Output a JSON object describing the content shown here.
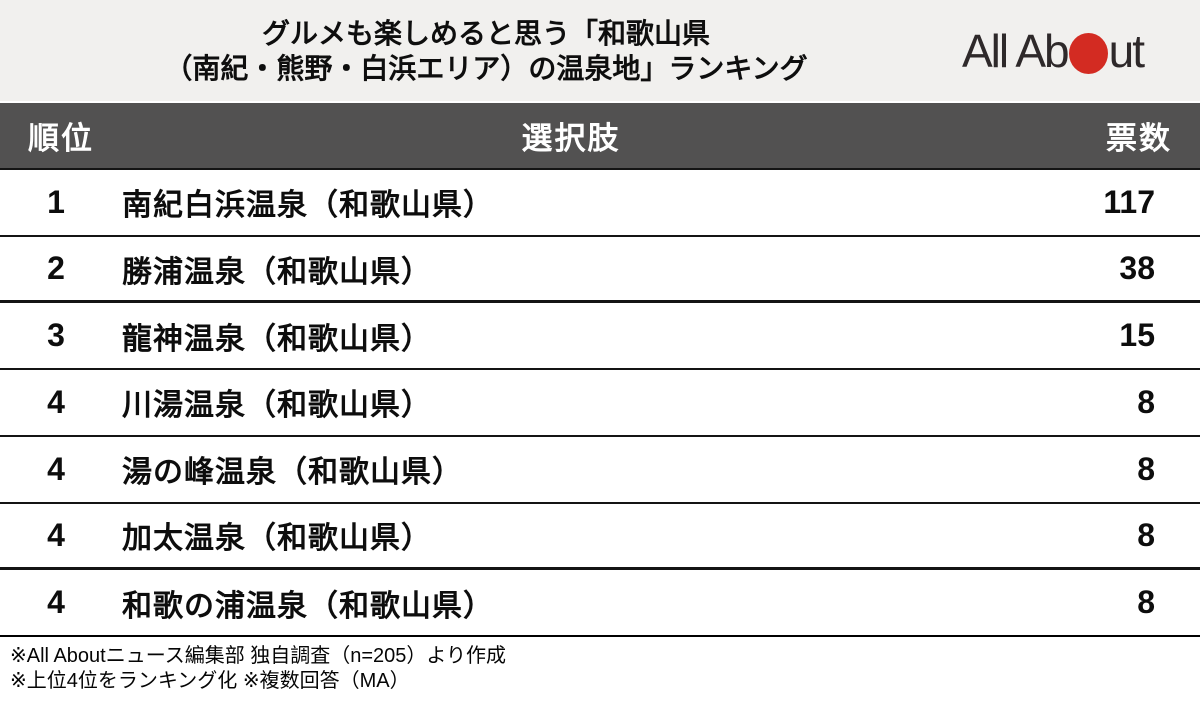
{
  "header": {
    "title_line1": "グルメも楽しめると思う「和歌山県",
    "title_line2": "（南紀・熊野・白浜エリア）の温泉地」ランキング",
    "logo": {
      "name": "All About",
      "text_before": "All Ab",
      "text_after": "ut"
    }
  },
  "table": {
    "columns": [
      "順位",
      "選択肢",
      "票数"
    ],
    "rows": [
      {
        "rank": "1",
        "choice": "南紀白浜温泉（和歌山県）",
        "votes": "117"
      },
      {
        "rank": "2",
        "choice": "勝浦温泉（和歌山県）",
        "votes": "38"
      },
      {
        "rank": "3",
        "choice": "龍神温泉（和歌山県）",
        "votes": "15"
      },
      {
        "rank": "4",
        "choice": "川湯温泉（和歌山県）",
        "votes": "8"
      },
      {
        "rank": "4",
        "choice": "湯の峰温泉（和歌山県）",
        "votes": "8"
      },
      {
        "rank": "4",
        "choice": "加太温泉（和歌山県）",
        "votes": "8"
      },
      {
        "rank": "4",
        "choice": "和歌の浦温泉（和歌山県）",
        "votes": "8"
      }
    ]
  },
  "footer": {
    "line1": "※All Aboutニュース編集部 独自調査（n=205）より作成",
    "line2": "※上位4位をランキング化 ※複数回答（MA）"
  },
  "colors": {
    "title_band_bg": "#f1f0ee",
    "table_header_bg": "#525151",
    "logo_dot_red": "#d32b22",
    "line_color": "#141414"
  },
  "chart_data": {
    "type": "table",
    "title": "グルメも楽しめると思う「和歌山県（南紀・熊野・白浜エリア）の温泉地」ランキング",
    "columns": [
      "順位",
      "選択肢",
      "票数"
    ],
    "rows": [
      [
        "1",
        "南紀白浜温泉（和歌山県）",
        117
      ],
      [
        "2",
        "勝浦温泉（和歌山県）",
        38
      ],
      [
        "3",
        "龍神温泉（和歌山県）",
        15
      ],
      [
        "4",
        "川湯温泉（和歌山県）",
        8
      ],
      [
        "4",
        "湯の峰温泉（和歌山県）",
        8
      ],
      [
        "4",
        "加太温泉（和歌山県）",
        8
      ],
      [
        "4",
        "和歌の浦温泉（和歌山県）",
        8
      ]
    ],
    "notes": [
      "※All Aboutニュース編集部 独自調査（n=205）より作成",
      "※上位4位をランキング化 ※複数回答（MA）"
    ]
  }
}
